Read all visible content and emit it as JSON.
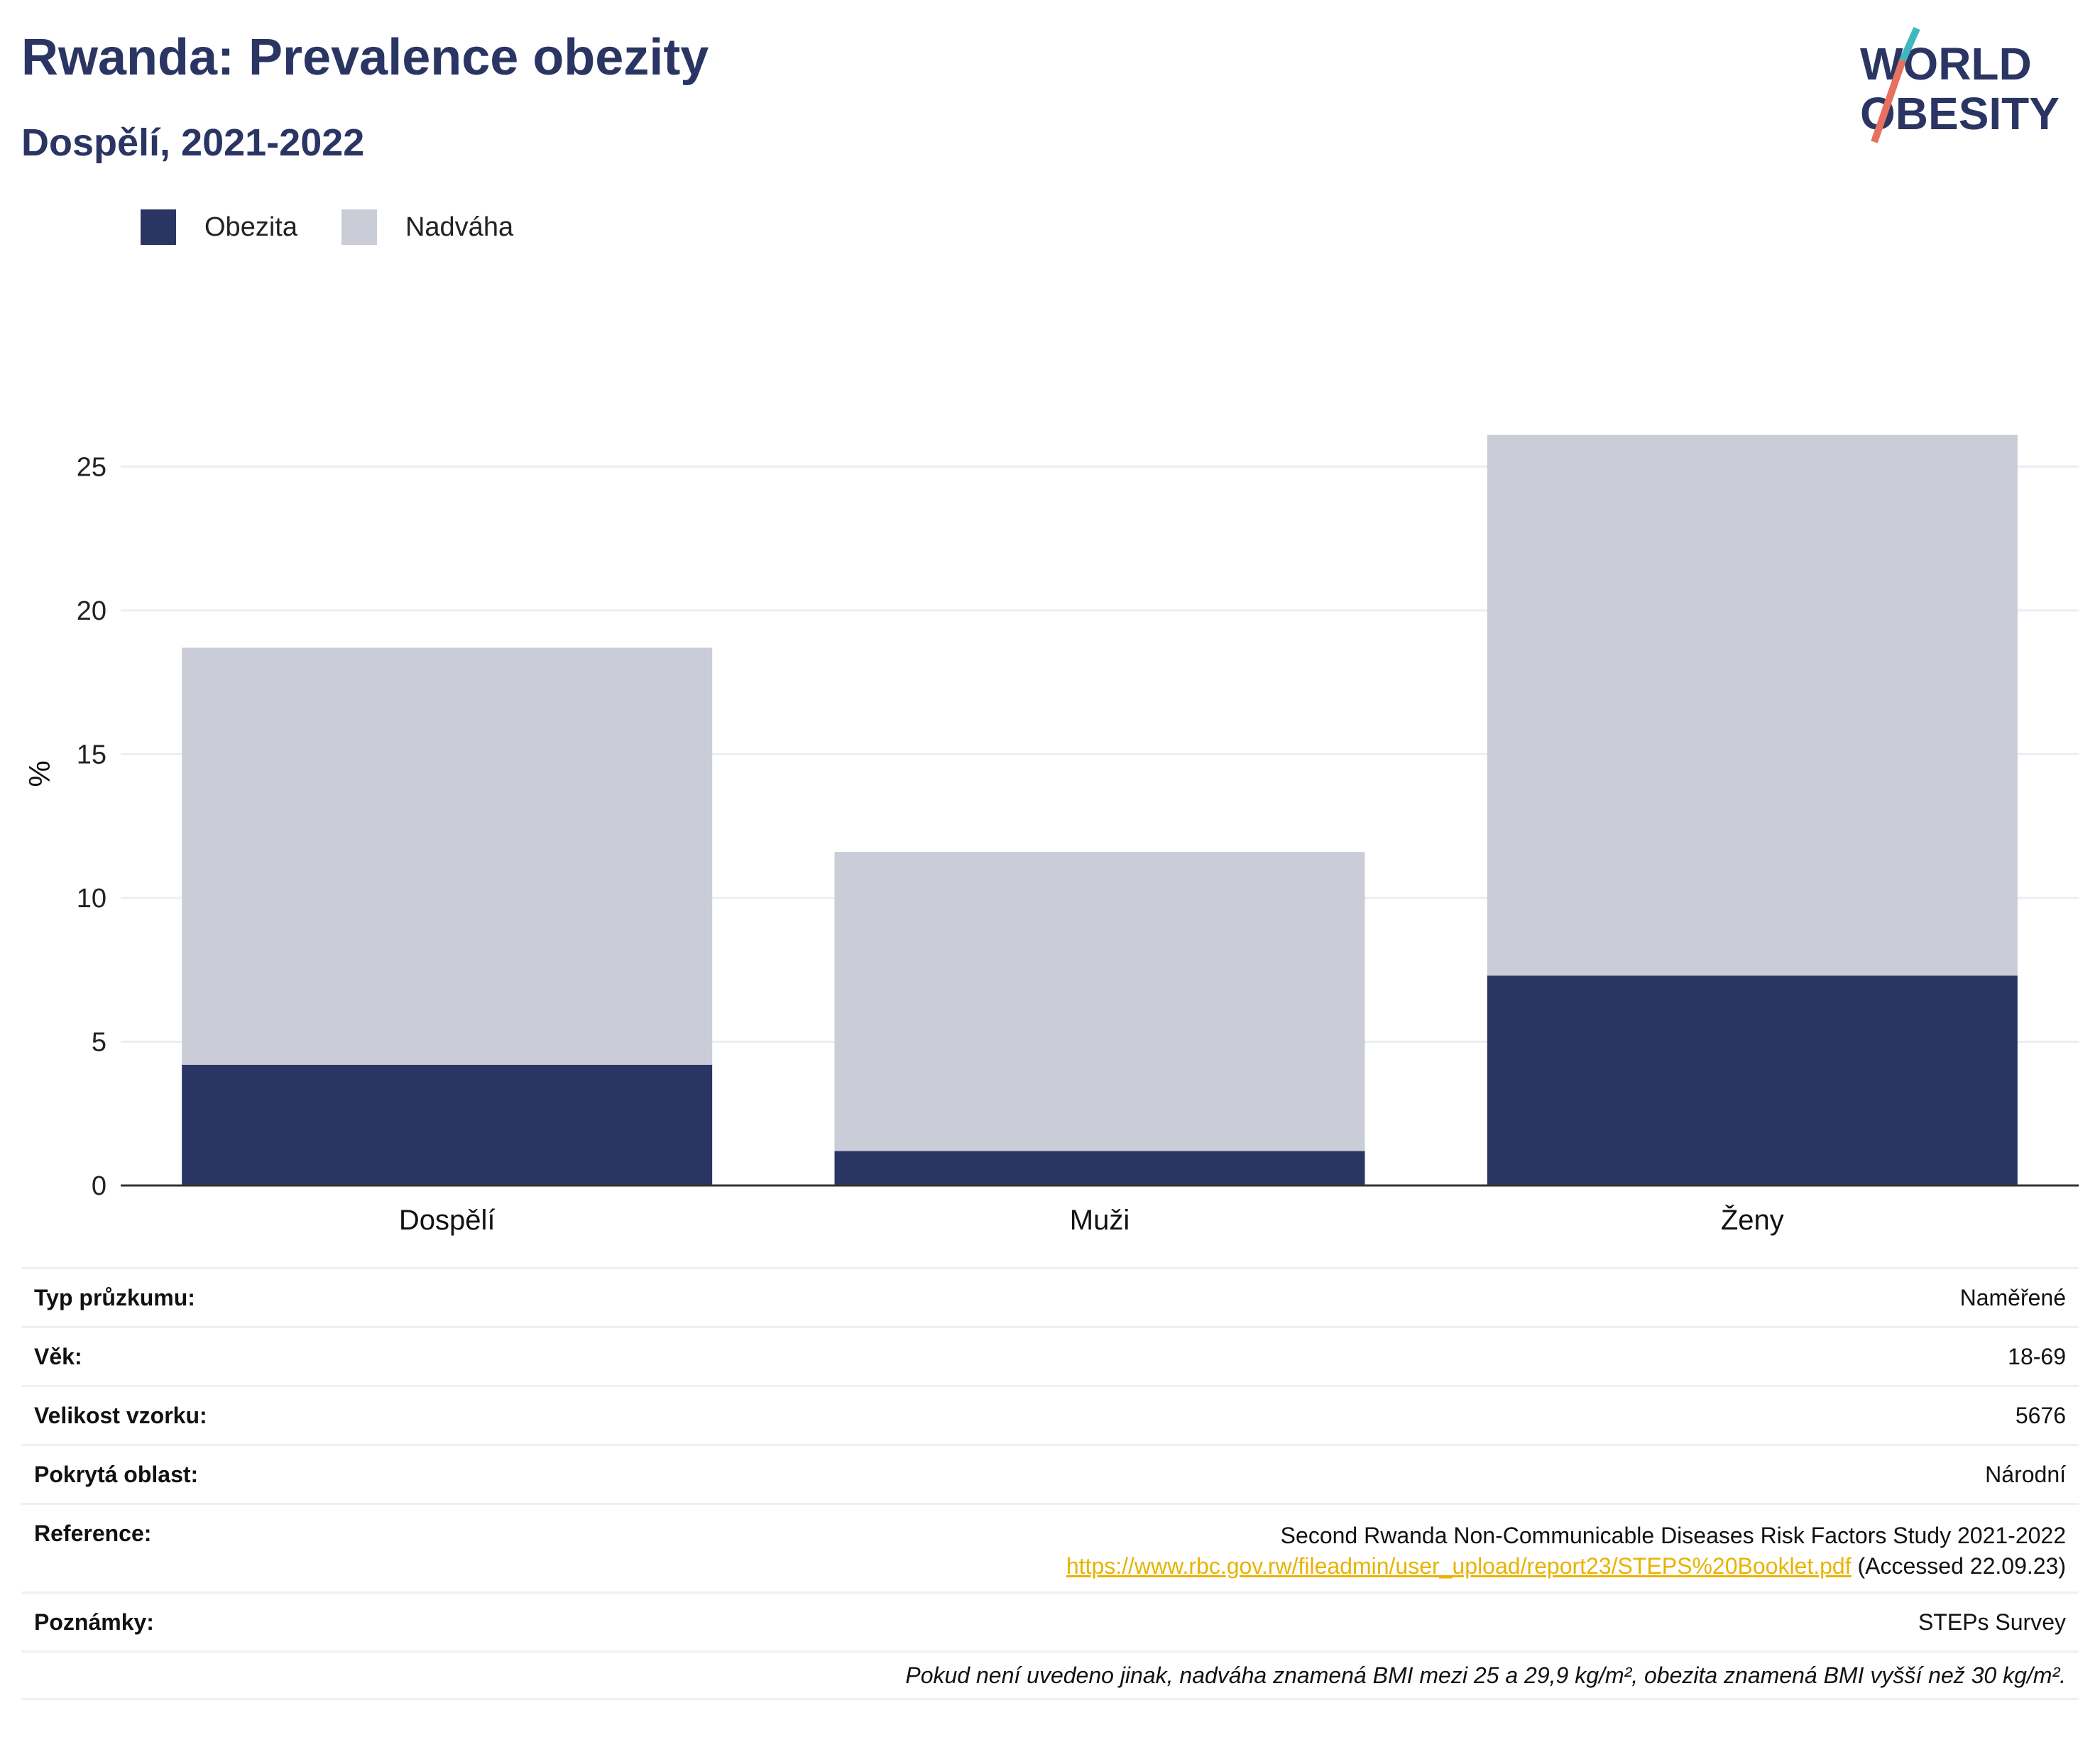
{
  "header": {
    "title": "Rwanda: Prevalence obezity",
    "subtitle": "Dospělí, 2021-2022",
    "logo_line1": "WORLD",
    "logo_line2": "OBESITY"
  },
  "colors": {
    "obesity": "#2a3563",
    "overweight": "#cacdd8",
    "title": "#2a3563",
    "link": "#e9b200",
    "grid": "#eceef4"
  },
  "chart_data": {
    "type": "bar",
    "stacked": true,
    "categories": [
      "Dospělí",
      "Muži",
      "Ženy"
    ],
    "series": [
      {
        "name": "Obezita",
        "values": [
          4.2,
          1.2,
          7.3
        ]
      },
      {
        "name": "Nadváha",
        "values": [
          14.5,
          10.4,
          18.8
        ]
      }
    ],
    "title": "",
    "xlabel": "",
    "ylabel": "%",
    "ylim": [
      0,
      27.5
    ],
    "yticks": [
      0,
      5,
      10,
      15,
      20,
      25
    ],
    "grid": true,
    "legend": "top-left"
  },
  "meta": {
    "rows": [
      {
        "key": "Typ průzkumu:",
        "value": "Naměřené"
      },
      {
        "key": "Věk:",
        "value": "18-69"
      },
      {
        "key": "Velikost vzorku:",
        "value": "5676"
      },
      {
        "key": "Pokrytá oblast:",
        "value": "Národní"
      }
    ],
    "reference": {
      "key": "Reference:",
      "line1": "Second Rwanda Non-Communicable Diseases Risk Factors Study 2021-2022",
      "link": "https://www.rbc.gov.rw/fileadmin/user_upload/report23/STEPS%20Booklet.pdf",
      "accessed": " (Accessed 22.09.23)"
    },
    "notes": {
      "key": "Poznámky:",
      "value": "STEPs Survey"
    },
    "footnote": "Pokud není uvedeno jinak, nadváha znamená BMI mezi 25 a 29,9 kg/m², obezita znamená BMI vyšší než 30 kg/m²."
  }
}
